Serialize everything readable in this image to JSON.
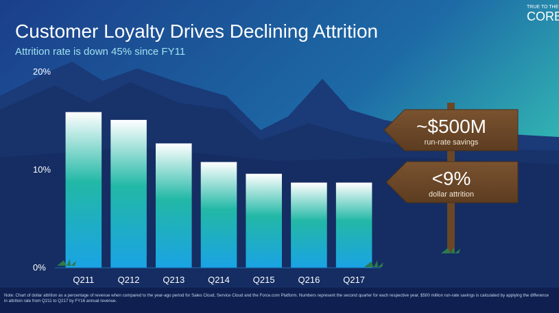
{
  "chart_data": {
    "type": "bar",
    "title": "Customer Loyalty Drives Declining Attrition",
    "subtitle": "Attrition rate is down 45% since FY11",
    "categories": [
      "Q211",
      "Q212",
      "Q213",
      "Q214",
      "Q215",
      "Q216",
      "Q217"
    ],
    "values": [
      15.9,
      15.1,
      12.7,
      10.8,
      9.6,
      8.7,
      8.7
    ],
    "ylim": [
      0,
      20
    ],
    "yticks": [
      {
        "value": 0,
        "label": "0%"
      },
      {
        "value": 10,
        "label": "10%"
      },
      {
        "value": 20,
        "label": "20%"
      }
    ],
    "grid": false,
    "signs": [
      {
        "headline": "~$500M",
        "caption": "run-rate savings"
      },
      {
        "headline": "<9%",
        "caption": "dollar attrition"
      }
    ],
    "note": "Note: Chart of dollar attrition as a percentage of revenue when compared to the year-ago period for Sales Cloud, Service Cloud and the Force.com Platform. Numbers represent the second quarter for each respective year. $500 million run-rate savings is calculated by applying the difference in attrition rate from Q211 to Q217 by FY16 annual revenue."
  },
  "logo": {
    "top": "TRUE TO THE",
    "bottom": "CORE"
  }
}
